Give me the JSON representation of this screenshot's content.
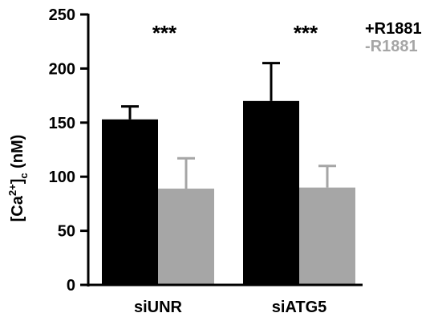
{
  "chart_data": {
    "type": "bar",
    "categories": [
      "siUNR",
      "siATG5"
    ],
    "series": [
      {
        "name": "+R1881",
        "color": "#000000",
        "values": [
          153,
          170
        ],
        "errors": [
          12,
          35
        ]
      },
      {
        "name": "-R1881",
        "color": "#a6a6a6",
        "values": [
          89,
          90
        ],
        "errors": [
          28,
          20
        ]
      }
    ],
    "ylabel": {
      "main": "[Ca",
      "sup": "2+",
      "close": "]",
      "sub": "c",
      "unit": " (nM)"
    },
    "ylim": [
      0,
      250
    ],
    "yticks": [
      "0",
      "50",
      "100",
      "150",
      "200",
      "250"
    ],
    "significance": [
      "***",
      "***"
    ],
    "legend_position": "top-right",
    "grid": false
  }
}
